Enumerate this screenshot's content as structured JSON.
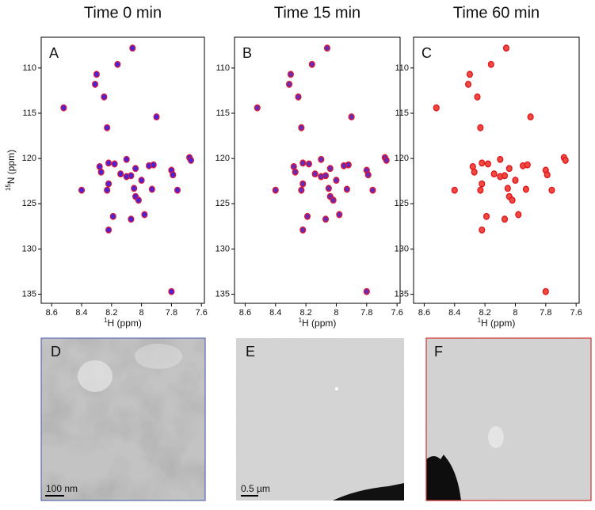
{
  "chart_data": [
    {
      "type": "scatter",
      "title": "Time 0 min",
      "panel_label": "A",
      "color": "#4b22d8",
      "edge_color": "#d81a3a",
      "ylabel_sup": "15",
      "ylabel": "N  (ppm)",
      "xlabel_sup": "1",
      "xlabel": "H  (ppm)",
      "xlim": [
        8.67,
        7.58
      ],
      "ylim": [
        136.0,
        106.6
      ],
      "xticks": [
        8.6,
        8.4,
        8.2,
        8.0,
        7.8,
        7.6
      ],
      "yticks": [
        110,
        115,
        120,
        125,
        130,
        135
      ],
      "x": [
        8.06,
        8.16,
        8.3,
        8.31,
        8.25,
        8.52,
        7.9,
        8.23,
        7.68,
        7.67,
        8.1,
        8.22,
        8.18,
        8.28,
        7.95,
        7.92,
        8.04,
        7.8,
        7.79,
        8.27,
        8.14,
        8.1,
        8.07,
        8.0,
        8.22,
        7.93,
        8.05,
        7.76,
        8.4,
        8.23,
        8.04,
        8.02,
        7.98,
        8.19,
        8.07,
        8.22,
        7.8
      ],
      "y": [
        107.8,
        109.6,
        110.7,
        111.8,
        113.2,
        114.4,
        115.4,
        116.6,
        119.9,
        120.2,
        120.1,
        120.5,
        120.6,
        120.9,
        120.8,
        120.7,
        121.1,
        121.3,
        121.8,
        121.5,
        121.7,
        122.0,
        121.9,
        122.4,
        122.8,
        123.4,
        123.3,
        123.5,
        123.5,
        123.5,
        124.2,
        124.6,
        126.2,
        126.4,
        126.7,
        127.9,
        134.7
      ]
    },
    {
      "type": "scatter",
      "title": "Time 15 min",
      "panel_label": "B",
      "color": "#6a2ab8",
      "edge_color": "#e0182c",
      "xlabel_sup": "1",
      "xlabel": "H  (ppm)",
      "xlim": [
        8.67,
        7.58
      ],
      "ylim": [
        136.0,
        106.6
      ],
      "xticks": [
        8.6,
        8.4,
        8.2,
        8.0,
        7.8,
        7.6
      ],
      "yticks": [
        110,
        115,
        120,
        125,
        130,
        135
      ],
      "x": [
        8.06,
        8.16,
        8.3,
        8.31,
        8.25,
        8.52,
        7.9,
        8.23,
        7.68,
        7.67,
        8.1,
        8.22,
        8.18,
        8.28,
        7.95,
        7.92,
        8.04,
        7.8,
        7.79,
        8.27,
        8.14,
        8.1,
        8.07,
        8.0,
        8.22,
        7.93,
        8.05,
        7.76,
        8.4,
        8.23,
        8.04,
        8.02,
        7.98,
        8.19,
        8.07,
        8.22,
        7.8
      ],
      "y": [
        107.8,
        109.6,
        110.7,
        111.8,
        113.2,
        114.4,
        115.4,
        116.6,
        119.9,
        120.2,
        120.1,
        120.5,
        120.6,
        120.9,
        120.8,
        120.7,
        121.1,
        121.3,
        121.8,
        121.5,
        121.7,
        122.0,
        121.9,
        122.4,
        122.8,
        123.4,
        123.3,
        123.5,
        123.5,
        123.5,
        124.2,
        124.6,
        126.2,
        126.4,
        126.7,
        127.9,
        134.7
      ]
    },
    {
      "type": "scatter",
      "title": "Time 60 min",
      "panel_label": "C",
      "color": "#f04a40",
      "edge_color": "#e0141c",
      "xlabel_sup": "1",
      "xlabel": "H  (ppm)",
      "xlim": [
        8.67,
        7.58
      ],
      "ylim": [
        136.0,
        106.6
      ],
      "xticks": [
        8.6,
        8.4,
        8.2,
        8.0,
        7.8,
        7.6
      ],
      "yticks": [
        110,
        115,
        120,
        125,
        130,
        135
      ],
      "x": [
        8.06,
        8.16,
        8.3,
        8.31,
        8.25,
        8.52,
        7.9,
        8.23,
        7.68,
        7.67,
        8.1,
        8.22,
        8.18,
        8.28,
        7.95,
        7.92,
        8.04,
        7.8,
        7.79,
        8.27,
        8.14,
        8.1,
        8.07,
        8.0,
        8.22,
        7.93,
        8.05,
        7.76,
        8.4,
        8.23,
        8.04,
        8.02,
        7.98,
        8.19,
        8.07,
        8.22,
        7.8
      ],
      "y": [
        107.8,
        109.6,
        110.7,
        111.8,
        113.2,
        114.4,
        115.4,
        116.6,
        119.9,
        120.2,
        120.1,
        120.5,
        120.6,
        120.9,
        120.8,
        120.7,
        121.1,
        121.3,
        121.8,
        121.5,
        121.7,
        122.0,
        121.9,
        122.4,
        122.8,
        123.4,
        123.3,
        123.5,
        123.5,
        123.5,
        124.2,
        124.6,
        126.2,
        126.4,
        126.7,
        127.9,
        134.7
      ]
    }
  ],
  "images": [
    {
      "panel_label": "D",
      "scale_bar": "100 nm"
    },
    {
      "panel_label": "E",
      "scale_bar": "0.5 µm"
    },
    {
      "panel_label": "F"
    }
  ]
}
